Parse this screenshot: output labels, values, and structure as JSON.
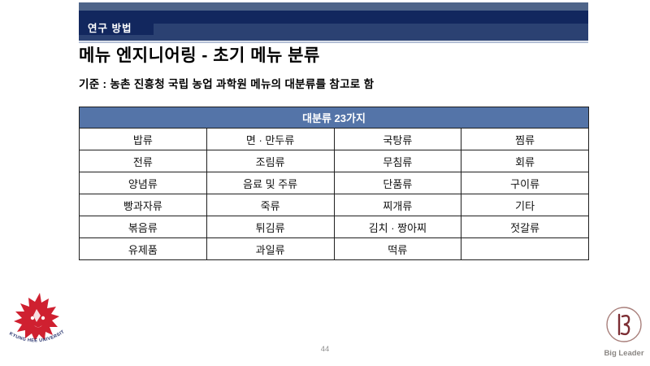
{
  "slide": {
    "header_tab": "연구 방법",
    "title": "메뉴 엔지니어링 - 초기 메뉴 분류",
    "subtitle": "기준 : 농촌 진흥청 국립 농업 과학원 메뉴의 대분류를 참고로 함",
    "page_number": "44"
  },
  "table": {
    "header": "대분류 23가지",
    "columns": 4,
    "rows": [
      [
        "밥류",
        "면 · 만두류",
        "국탕류",
        "찜류"
      ],
      [
        "전류",
        "조림류",
        "무침류",
        "회류"
      ],
      [
        "양념류",
        "음료 및 주류",
        "단품류",
        "구이류"
      ],
      [
        "빵과자류",
        "죽류",
        "찌개류",
        "기타"
      ],
      [
        "볶음류",
        "튀김류",
        "김치 · 짱아찌",
        "젓갈류"
      ],
      [
        "유제품",
        "과일류",
        "떡류",
        ""
      ]
    ]
  },
  "logos": {
    "university": {
      "icon": "kyung-hee-lion-icon",
      "arc_text": "KYUNG HEE UNIVERSITY"
    },
    "big_leader": {
      "icon": "big-leader-emblem-icon",
      "label": "Big Leader"
    }
  },
  "colors": {
    "band_light": "#4e6489",
    "band_dark": "#12275e",
    "band_mid": "#2b4172",
    "underline": "#b4c0d6",
    "table_header_bg": "#5474a8",
    "table_border": "#1f1f1f",
    "lion_red": "#cf2030",
    "arc_text_navy": "#27336e",
    "emblem_maroon": "#7c2d33",
    "page_number_gray": "#909090"
  }
}
